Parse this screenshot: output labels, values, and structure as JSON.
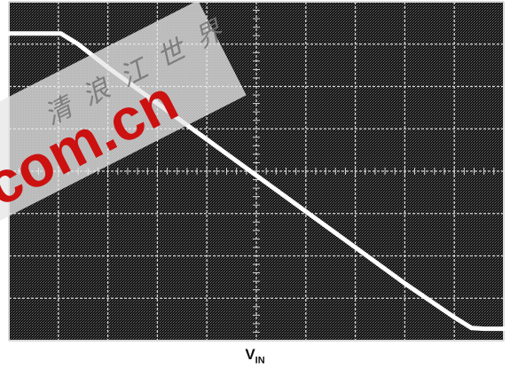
{
  "chart_data": {
    "type": "line",
    "title": "",
    "xlabel": "V",
    "xlabel_subscript": "IN",
    "ylabel": "",
    "grid": true,
    "grid_divisions": {
      "x": 10,
      "y": 8
    },
    "xlim": [
      0,
      10
    ],
    "ylim": [
      0,
      8
    ],
    "series": [
      {
        "x": [
          0,
          1.05,
          1.4,
          2.0,
          3.0,
          4.0,
          5.0,
          6.0,
          7.0,
          8.0,
          9.0,
          9.35,
          9.6,
          10
        ],
        "y": [
          7.25,
          7.25,
          7.0,
          6.45,
          5.6,
          4.75,
          3.9,
          3.05,
          2.2,
          1.35,
          0.55,
          0.3,
          0.28,
          0.28
        ]
      }
    ]
  },
  "watermark": {
    "chars": [
      "清",
      "浪",
      "江",
      "世",
      "界"
    ],
    "domain": ".com.cn",
    "color": "#cc1111"
  },
  "colors": {
    "screen": "#111111",
    "grid": "#d8d8d8",
    "trace": "#ffffff"
  }
}
